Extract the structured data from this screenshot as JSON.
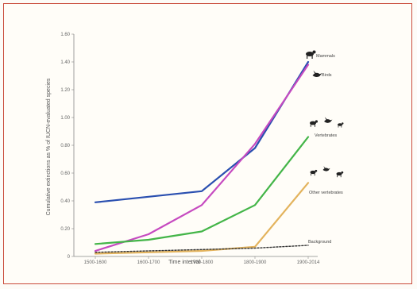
{
  "chart_data": {
    "type": "line",
    "title": "",
    "xlabel": "Time interval",
    "ylabel": "Cumulative extinctions as % of IUCN-evaluated species",
    "categories": [
      "1500-1600",
      "1600-1700",
      "1700-1800",
      "1800-1900",
      "1900-2014"
    ],
    "ylim": [
      0,
      1.6
    ],
    "yticks": [
      "0",
      "0.20",
      "0.40",
      "0.60",
      "0.80",
      "1.00",
      "1.20",
      "1.40",
      "1.60"
    ],
    "grid": false,
    "legend": "inline labels at line ends",
    "series": [
      {
        "name": "Mammals",
        "color": "#2a4fb0",
        "values": [
          0.39,
          0.43,
          0.47,
          0.78,
          1.4
        ]
      },
      {
        "name": "Birds",
        "color": "#c64ac0",
        "values": [
          0.04,
          0.16,
          0.37,
          0.81,
          1.38
        ]
      },
      {
        "name": "Vertebrates",
        "color": "#43b548",
        "values": [
          0.09,
          0.12,
          0.18,
          0.37,
          0.86
        ]
      },
      {
        "name": "Other vertebrates",
        "color": "#e3b35d",
        "values": [
          0.02,
          0.03,
          0.04,
          0.07,
          0.53
        ]
      },
      {
        "name": "Background",
        "color": "#333333",
        "values": [
          0.03,
          0.04,
          0.05,
          0.06,
          0.08
        ],
        "dashed": true
      }
    ]
  }
}
